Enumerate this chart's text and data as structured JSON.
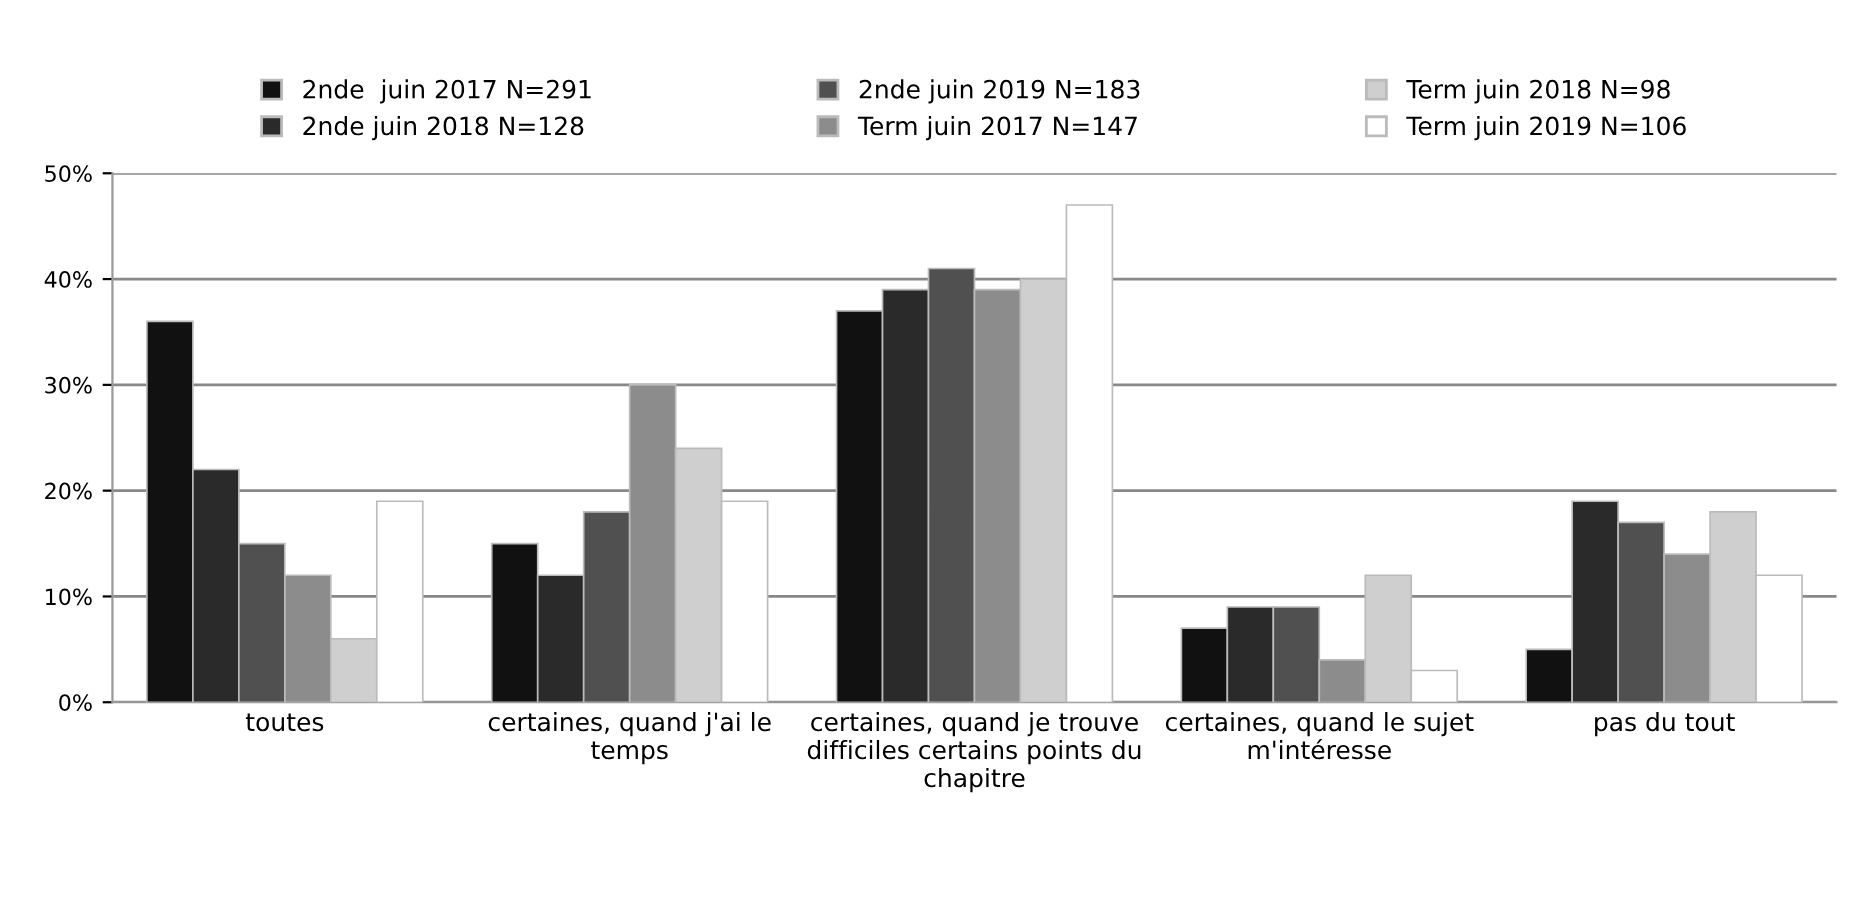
{
  "chart_data": {
    "type": "bar",
    "categories": [
      "toutes",
      "certaines, quand j'ai le temps",
      "certaines, quand je trouve difficiles certains points du chapitre",
      "certaines, quand le sujet m'intéresse",
      "pas du tout"
    ],
    "series": [
      {
        "name": "2nde  juin 2017 N=291",
        "color": "#111111",
        "values": [
          36,
          15,
          37,
          7,
          5
        ]
      },
      {
        "name": "2nde juin 2018 N=128",
        "color": "#2a2a2a",
        "values": [
          22,
          12,
          39,
          9,
          19
        ]
      },
      {
        "name": "2nde juin 2019 N=183",
        "color": "#505050",
        "values": [
          15,
          18,
          41,
          9,
          17
        ]
      },
      {
        "name": "Term juin 2017 N=147",
        "color": "#8c8c8c",
        "values": [
          12,
          30,
          39,
          4,
          14
        ]
      },
      {
        "name": "Term juin 2018 N=98",
        "color": "#cfcfcf",
        "values": [
          6,
          24,
          40,
          12,
          18
        ]
      },
      {
        "name": "Term juin 2019 N=106",
        "color": "#ffffff",
        "values": [
          19,
          19,
          47,
          3,
          12
        ]
      }
    ],
    "ylim": [
      0,
      50
    ],
    "yticks": [
      {
        "value": 0,
        "label": "0%"
      },
      {
        "value": 10,
        "label": "10%"
      },
      {
        "value": 20,
        "label": "20%"
      },
      {
        "value": 30,
        "label": "30%"
      },
      {
        "value": 40,
        "label": "40%"
      },
      {
        "value": 50,
        "label": "50%"
      }
    ],
    "grid": "y",
    "legend": "top"
  }
}
